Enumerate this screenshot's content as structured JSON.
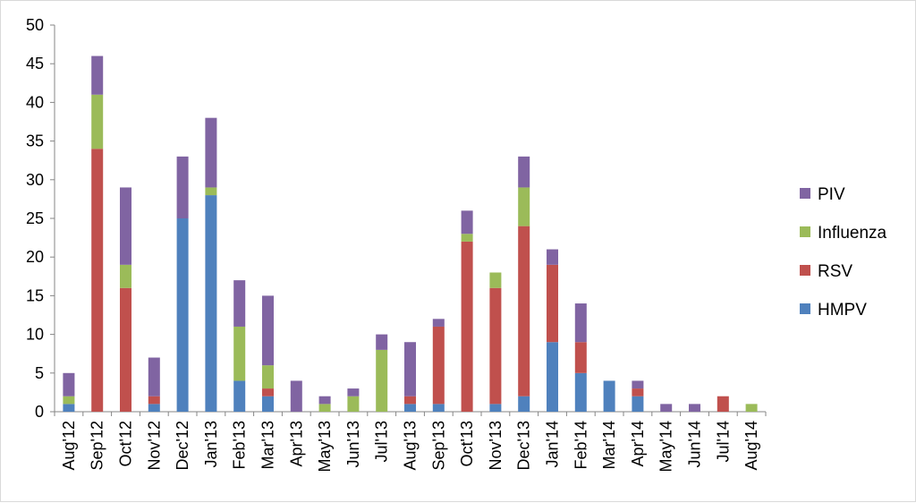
{
  "chart_data": {
    "type": "bar",
    "stacked": true,
    "title": "",
    "xlabel": "",
    "ylabel": "",
    "ylim": [
      0,
      50
    ],
    "yticks": [
      0,
      5,
      10,
      15,
      20,
      25,
      30,
      35,
      40,
      45,
      50
    ],
    "grid": false,
    "legend_position": "right",
    "categories": [
      "Aug'12",
      "Sep'12",
      "Oct'12",
      "Nov'12",
      "Dec'12",
      "Jan'13",
      "Feb'13",
      "Mar'13",
      "Apr'13",
      "May'13",
      "Jun'13",
      "Jul'13",
      "Aug'13",
      "Sep'13",
      "Oct'13",
      "Nov'13",
      "Dec'13",
      "Jan'14",
      "Feb'14",
      "Mar'14",
      "Apr'14",
      "May'14",
      "Jun'14",
      "Jul'14",
      "Aug'14"
    ],
    "series": [
      {
        "name": "HMPV",
        "color": "#4F81BD",
        "values": [
          1,
          0,
          0,
          1,
          25,
          28,
          4,
          2,
          0,
          0,
          0,
          0,
          1,
          1,
          0,
          1,
          2,
          9,
          5,
          4,
          2,
          0,
          0,
          0,
          0
        ]
      },
      {
        "name": "RSV",
        "color": "#C0504D",
        "values": [
          0,
          34,
          16,
          1,
          0,
          0,
          0,
          1,
          0,
          0,
          0,
          0,
          1,
          10,
          22,
          15,
          22,
          10,
          4,
          0,
          1,
          0,
          0,
          2,
          0
        ]
      },
      {
        "name": "Influenza",
        "color": "#9BBB59",
        "values": [
          1,
          7,
          3,
          0,
          0,
          1,
          7,
          3,
          0,
          1,
          2,
          8,
          0,
          0,
          1,
          2,
          5,
          0,
          0,
          0,
          0,
          0,
          0,
          0,
          1
        ]
      },
      {
        "name": "PIV",
        "color": "#8064A2",
        "values": [
          3,
          5,
          10,
          5,
          8,
          9,
          6,
          9,
          4,
          1,
          1,
          2,
          7,
          1,
          3,
          0,
          4,
          2,
          5,
          0,
          1,
          1,
          1,
          0,
          0
        ]
      }
    ],
    "legend_order": [
      "PIV",
      "Influenza",
      "RSV",
      "HMPV"
    ]
  }
}
